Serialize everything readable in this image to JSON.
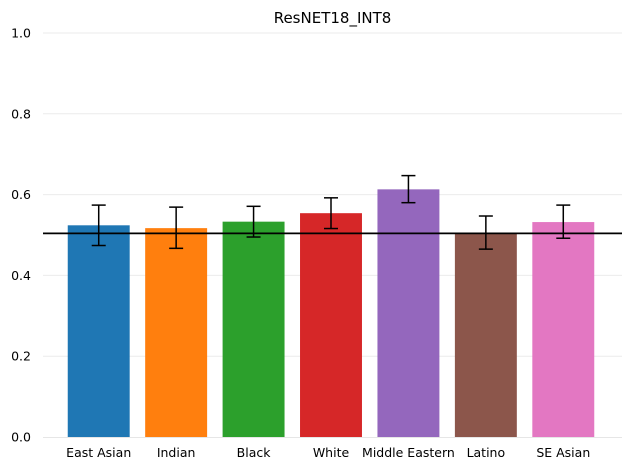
{
  "chart_data": {
    "type": "bar",
    "title": "ResNET18_INT8",
    "xlabel": "",
    "ylabel": "",
    "categories": [
      "East Asian",
      "Indian",
      "Black",
      "White",
      "Middle Eastern",
      "Latino",
      "SE Asian"
    ],
    "values": [
      0.524,
      0.517,
      0.533,
      0.554,
      0.613,
      0.505,
      0.532
    ],
    "error_low": [
      0.474,
      0.467,
      0.495,
      0.516,
      0.58,
      0.465,
      0.492
    ],
    "error_high": [
      0.574,
      0.569,
      0.571,
      0.592,
      0.647,
      0.547,
      0.574
    ],
    "colors": [
      "#1f77b4",
      "#ff7f0e",
      "#2ca02c",
      "#d62728",
      "#9467bd",
      "#8c564b",
      "#e377c2"
    ],
    "reference_line": 0.504,
    "ylim": [
      0.0,
      1.0
    ],
    "yticks": [
      0.0,
      0.2,
      0.4,
      0.6,
      0.8,
      1.0
    ],
    "ytick_labels": [
      "0.0",
      "0.2",
      "0.4",
      "0.6",
      "0.8",
      "1.0"
    ],
    "grid": true,
    "legend": "none"
  }
}
